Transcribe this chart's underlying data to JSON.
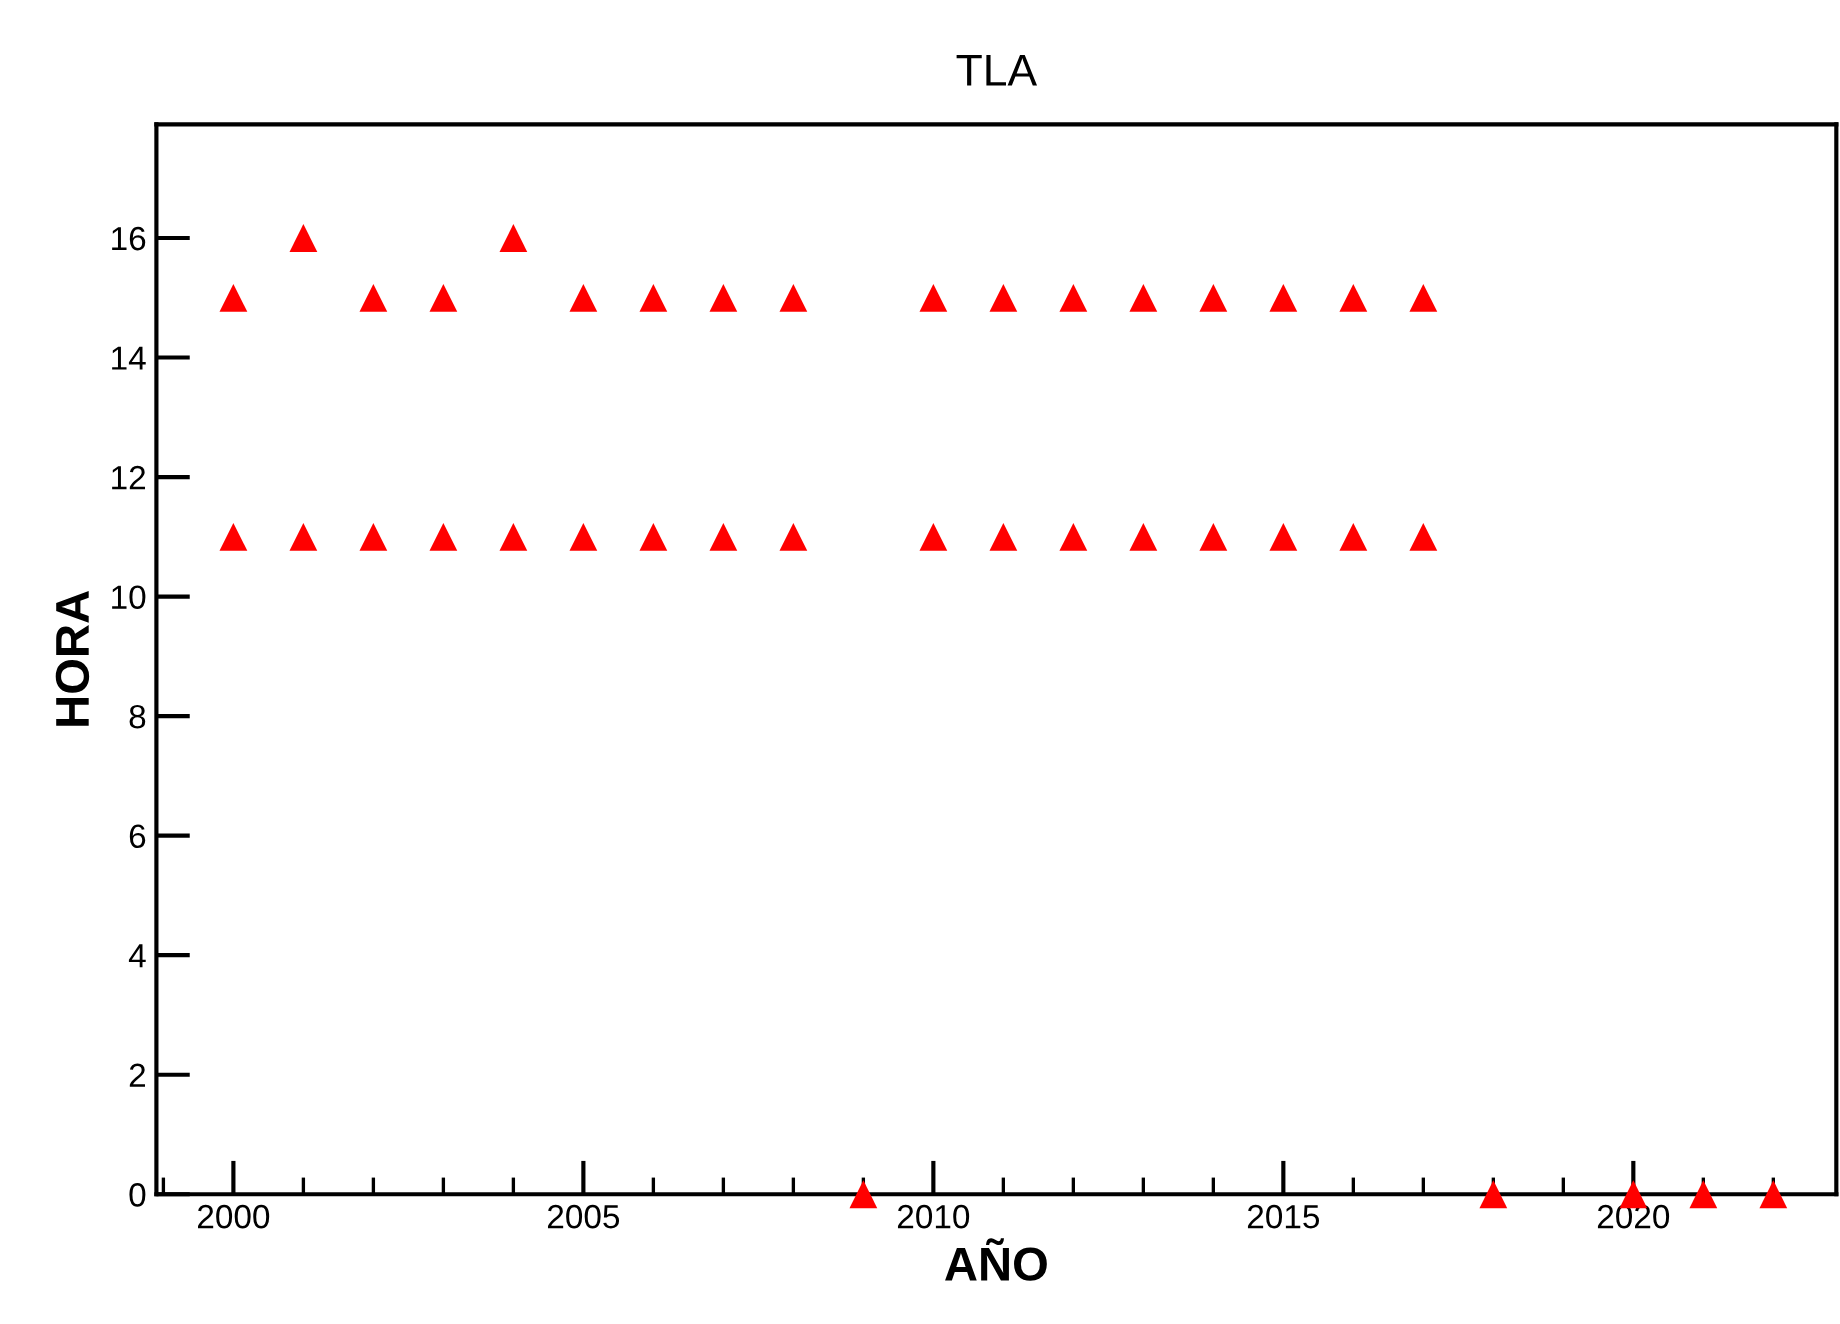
{
  "chart_data": {
    "type": "scatter",
    "title": "TLA",
    "xlabel": "AÑO",
    "ylabel": "HORA",
    "x": [
      2000,
      2000,
      2001,
      2001,
      2002,
      2002,
      2003,
      2003,
      2004,
      2004,
      2005,
      2005,
      2006,
      2006,
      2007,
      2007,
      2008,
      2008,
      2009,
      2010,
      2010,
      2011,
      2011,
      2012,
      2012,
      2013,
      2013,
      2014,
      2014,
      2015,
      2015,
      2016,
      2016,
      2017,
      2017,
      2018,
      2020,
      2021,
      2022
    ],
    "series": [
      {
        "color": "#ff0000",
        "values": [
          15,
          11,
          16,
          11,
          15,
          11,
          15,
          11,
          16,
          11,
          15,
          11,
          15,
          11,
          15,
          11,
          15,
          11,
          0,
          15,
          11,
          15,
          11,
          15,
          11,
          15,
          11,
          15,
          11,
          15,
          11,
          15,
          11,
          15,
          11,
          0,
          0,
          0,
          0
        ]
      }
    ],
    "marker": "triangle",
    "xlim": [
      1998.9,
      2022.9
    ],
    "ylim": [
      0,
      17.9
    ],
    "xticks": [
      2000,
      2005,
      2010,
      2015,
      2020
    ],
    "yticks": [
      0,
      2,
      4,
      6,
      8,
      10,
      12,
      14,
      16
    ],
    "grid": false,
    "legend": false
  }
}
